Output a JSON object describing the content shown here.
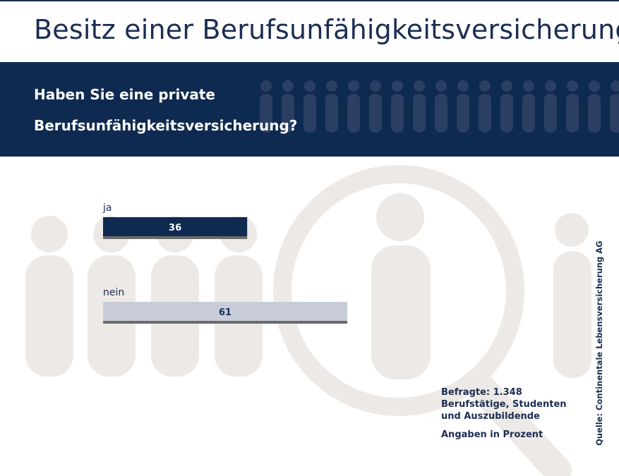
{
  "title": "Besitz einer Berufsunfähigkeitsversicherung",
  "question_lines": [
    "Haben Sie eine private",
    "Berufsunfähigkeitsversicherung?"
  ],
  "chart_data": {
    "type": "bar",
    "orientation": "horizontal",
    "categories": [
      "ja",
      "nein"
    ],
    "values": [
      36,
      61
    ],
    "value_labels": [
      "36",
      "61"
    ],
    "xlim": [
      0,
      61
    ],
    "grid": false,
    "colors": {
      "ja": "#0f2a50",
      "nein": "#c8ccd9",
      "shadow": "#6b6b6b"
    }
  },
  "notes": {
    "respondents_line1": "Befragte: 1.348",
    "respondents_line2": "Berufstätige, Studenten",
    "respondents_line3": "und Auszubildende",
    "unit": "Angaben in Prozent"
  },
  "source": "Quelle: Continentale Lebensversicherung AG",
  "colors": {
    "navy": "#0f2a50",
    "title": "#1b2d52",
    "figure_bg": "#ede9e6",
    "banner_figures": "#2a3f63"
  }
}
